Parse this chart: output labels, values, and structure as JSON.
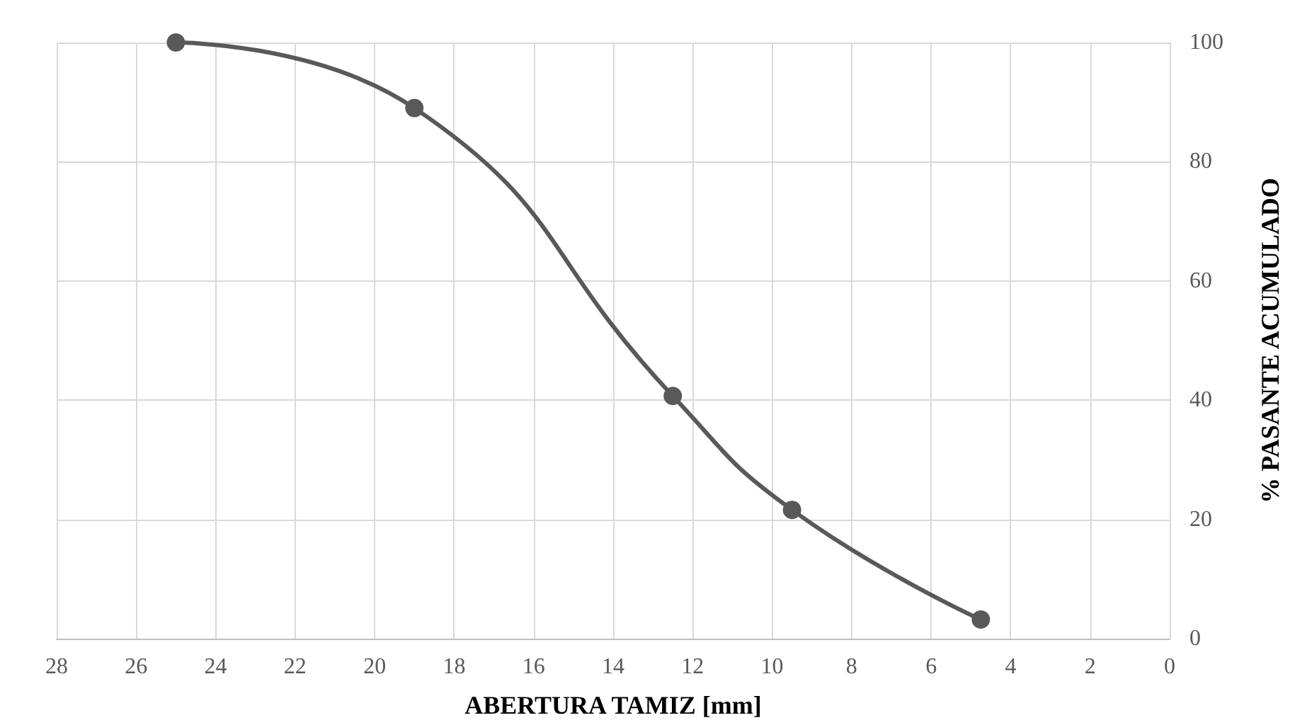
{
  "chart_data": {
    "type": "line",
    "xlabel": "ABERTURA TAMIZ [mm]",
    "ylabel": "% PASANTE ACUMULADO",
    "x": [
      25,
      19,
      12.5,
      9.5,
      4.75
    ],
    "series": [
      {
        "color": "#595959",
        "values": [
          100,
          89,
          40.7,
          21.6,
          3.2
        ]
      }
    ],
    "xlim": [
      28,
      0
    ],
    "xticks": [
      28,
      26,
      24,
      22,
      20,
      18,
      16,
      14,
      12,
      10,
      8,
      6,
      4,
      2,
      0
    ],
    "ylim": [
      0,
      100
    ],
    "yticks": [
      0,
      20,
      40,
      60,
      80,
      100
    ],
    "grid": true,
    "marker": "circle",
    "line_style": "solid"
  }
}
